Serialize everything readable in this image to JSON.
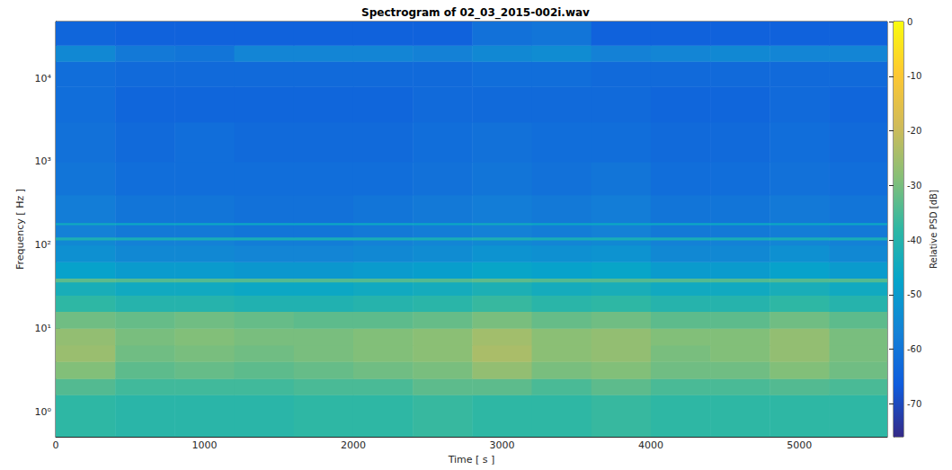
{
  "chart_data": {
    "type": "heatmap",
    "title": "Spectrogram of 02_03_2015-002i.wav",
    "x_label": "Time [ s ]",
    "y_label": "Frequency [ Hz ]",
    "colorbar_label": "Relative PSD [dB]",
    "log": "y",
    "grid": false,
    "xlim": [
      0,
      5590
    ],
    "xticks": [
      0,
      1000,
      2000,
      3000,
      4000,
      5000
    ],
    "ylim": [
      0.5,
      48000
    ],
    "yticks": [
      {
        "value": 1,
        "label": "10⁰"
      },
      {
        "value": 10,
        "label": "10¹"
      },
      {
        "value": 100,
        "label": "10²"
      },
      {
        "value": 1000,
        "label": "10³"
      },
      {
        "value": 10000,
        "label": "10⁴"
      }
    ],
    "x_bins": [
      0,
      400,
      800,
      1200,
      1600,
      2000,
      2400,
      2800,
      3200,
      3600,
      4000,
      4400,
      4800,
      5200,
      5590
    ],
    "y_bins": [
      0.5,
      1.6,
      2.5,
      4,
      6.3,
      10,
      16,
      25,
      36,
      40,
      63,
      100,
      115,
      125,
      175,
      185,
      400,
      1000,
      3000,
      8000,
      16000,
      25000,
      48000
    ],
    "values": [
      [
        -38,
        -39,
        -39,
        -39,
        -38,
        -38,
        -37,
        -38,
        -38,
        -37,
        -38,
        -38,
        -38,
        -38
      ],
      [
        -34,
        -36,
        -36,
        -36,
        -35,
        -35,
        -33,
        -33,
        -35,
        -33,
        -35,
        -35,
        -34,
        -35
      ],
      [
        -29,
        -33,
        -32,
        -33,
        -32,
        -31,
        -30,
        -27,
        -30,
        -29,
        -31,
        -31,
        -29,
        -31
      ],
      [
        -26,
        -31,
        -30,
        -31,
        -30,
        -29,
        -28,
        -24,
        -28,
        -27,
        -30,
        -29,
        -27,
        -30
      ],
      [
        -27,
        -30,
        -29,
        -30,
        -30,
        -29,
        -28,
        -25,
        -28,
        -27,
        -29,
        -29,
        -27,
        -30
      ],
      [
        -31,
        -32,
        -31,
        -32,
        -33,
        -33,
        -32,
        -30,
        -32,
        -31,
        -33,
        -33,
        -31,
        -33
      ],
      [
        -38,
        -40,
        -40,
        -41,
        -41,
        -40,
        -39,
        -37,
        -39,
        -38,
        -40,
        -40,
        -38,
        -40
      ],
      [
        -43,
        -45,
        -45,
        -46,
        -46,
        -45,
        -44,
        -42,
        -44,
        -43,
        -45,
        -45,
        -43,
        -45
      ],
      [
        -33,
        -34,
        -34,
        -34,
        -34,
        -34,
        -34,
        -33,
        -34,
        -34,
        -34,
        -34,
        -34,
        -34
      ],
      [
        -48,
        -50,
        -50,
        -51,
        -51,
        -50,
        -49,
        -47,
        -48,
        -47,
        -50,
        -50,
        -48,
        -50
      ],
      [
        -53,
        -55,
        -55,
        -56,
        -56,
        -55,
        -54,
        -52,
        -53,
        -52,
        -55,
        -55,
        -53,
        -55
      ],
      [
        -55,
        -57,
        -57,
        -58,
        -58,
        -57,
        -56,
        -55,
        -56,
        -55,
        -57,
        -57,
        -56,
        -57
      ],
      [
        -42,
        -43,
        -43,
        -43,
        -43,
        -43,
        -43,
        -42,
        -43,
        -43,
        -43,
        -43,
        -43,
        -43
      ],
      [
        -57,
        -59,
        -59,
        -60,
        -60,
        -59,
        -58,
        -57,
        -58,
        -57,
        -59,
        -59,
        -58,
        -59
      ],
      [
        -45,
        -46,
        -46,
        -46,
        -46,
        -46,
        -46,
        -45,
        -46,
        -46,
        -46,
        -46,
        -46,
        -46
      ],
      [
        -58,
        -60,
        -60,
        -61,
        -61,
        -60,
        -59,
        -58,
        -59,
        -58,
        -60,
        -60,
        -59,
        -60
      ],
      [
        -60,
        -62,
        -62,
        -62,
        -62,
        -62,
        -61,
        -60,
        -61,
        -60,
        -62,
        -62,
        -61,
        -62
      ],
      [
        -61,
        -63,
        -62,
        -63,
        -63,
        -63,
        -62,
        -61,
        -62,
        -62,
        -63,
        -63,
        -62,
        -63
      ],
      [
        -62,
        -64,
        -64,
        -64,
        -64,
        -64,
        -63,
        -63,
        -63,
        -63,
        -64,
        -64,
        -63,
        -64
      ],
      [
        -62,
        -63,
        -63,
        -63,
        -63,
        -63,
        -63,
        -62,
        -62,
        -63,
        -63,
        -63,
        -63,
        -63
      ],
      [
        -55,
        -59,
        -60,
        -56,
        -56,
        -56,
        -57,
        -55,
        -54,
        -57,
        -56,
        -55,
        -56,
        -56
      ],
      [
        -64,
        -65,
        -65,
        -65,
        -65,
        -65,
        -65,
        -61,
        -60,
        -65,
        -65,
        -65,
        -65,
        -65
      ]
    ],
    "colorbar_range": [
      -76,
      0
    ],
    "colorbar_ticks": [
      -70,
      -60,
      -50,
      -40,
      -30,
      -20,
      -10,
      0
    ]
  }
}
